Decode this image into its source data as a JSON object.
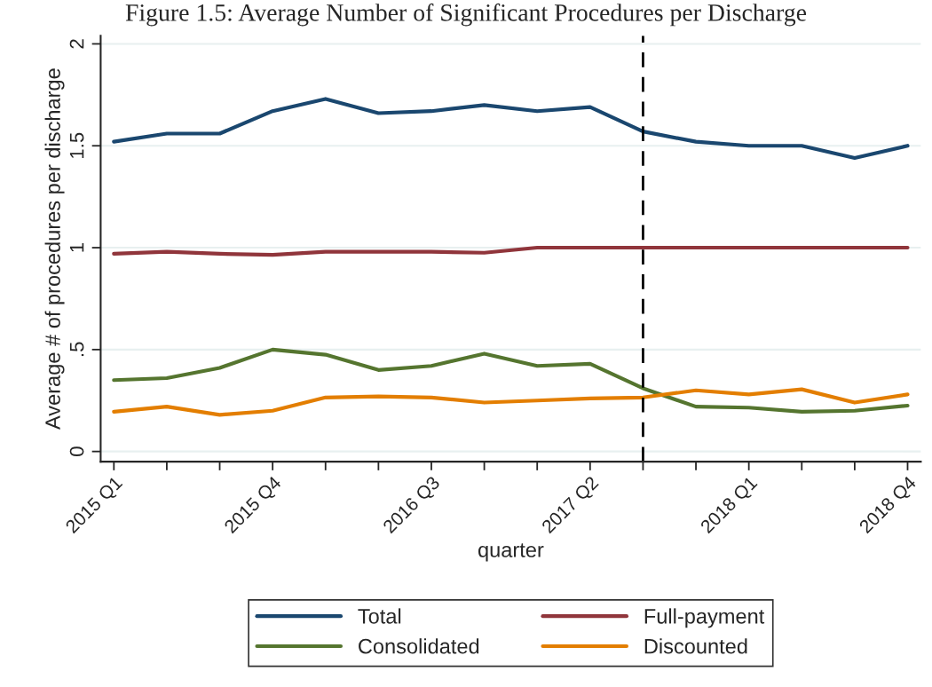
{
  "chart_data": {
    "type": "line",
    "title": "Figure 1.5: Average Number of Significant Procedures per Discharge",
    "xlabel": "quarter",
    "ylabel": "Average # of procedures per discharge",
    "categories": [
      "2015 Q1",
      null,
      null,
      "2015 Q4",
      null,
      null,
      "2016 Q3",
      null,
      null,
      "2017 Q2",
      null,
      null,
      "2018 Q1",
      null,
      null,
      "2018 Q4"
    ],
    "ylim": [
      -0.05,
      2.04
    ],
    "yticks": [
      0,
      {
        "value": 0.5,
        "label": ".5"
      },
      1,
      1.5,
      2
    ],
    "series": [
      {
        "name": "Total",
        "color": "#1a476f",
        "values": [
          1.52,
          1.56,
          1.56,
          1.67,
          1.73,
          1.66,
          1.67,
          1.7,
          1.67,
          1.69,
          1.57,
          1.52,
          1.5,
          1.5,
          1.44,
          1.5
        ]
      },
      {
        "name": "Full-payment",
        "color": "#90353b",
        "values": [
          0.97,
          0.98,
          0.97,
          0.965,
          0.98,
          0.98,
          0.98,
          0.975,
          1.0,
          1.0,
          1.0,
          1.0,
          1.0,
          1.0,
          1.0,
          1.0
        ]
      },
      {
        "name": "Consolidated",
        "color": "#55752f",
        "values": [
          0.35,
          0.36,
          0.41,
          0.5,
          0.475,
          0.4,
          0.42,
          0.48,
          0.42,
          0.43,
          0.31,
          0.22,
          0.215,
          0.195,
          0.2,
          0.225
        ]
      },
      {
        "name": "Discounted",
        "color": "#e37e00",
        "values": [
          0.195,
          0.22,
          0.18,
          0.2,
          0.265,
          0.27,
          0.265,
          0.24,
          0.25,
          0.26,
          0.265,
          0.3,
          0.28,
          0.305,
          0.24,
          0.28
        ]
      }
    ],
    "grid": "y",
    "legend": "bottom",
    "line_style": "solid",
    "marker": "none"
  }
}
